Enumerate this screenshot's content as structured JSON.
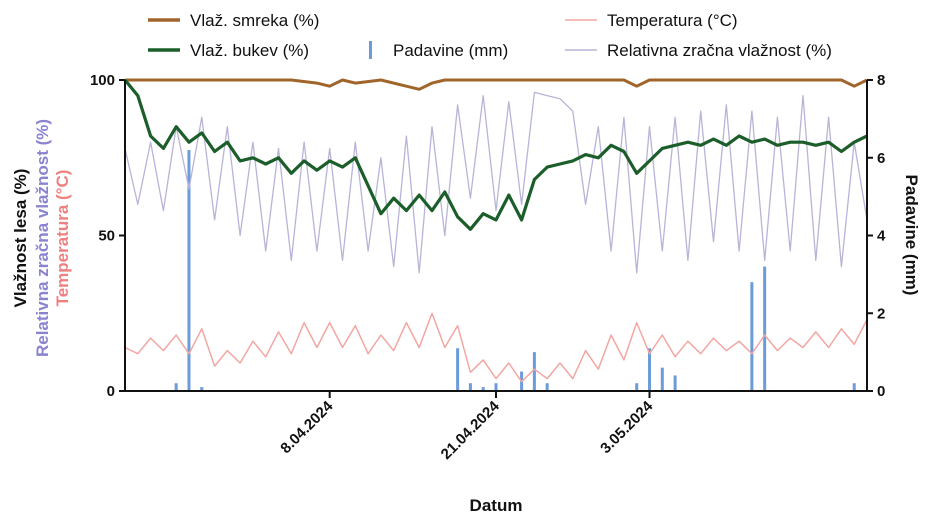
{
  "chart_data": {
    "type": "line",
    "xlabel": "Datum",
    "ylabel_left": [
      "Vlažnost lesa (%)",
      "Relativna zračna vlažnost (%)",
      "Temperatura (°C)"
    ],
    "ylabel_right": "Padavine (mm)",
    "x_range": [
      "2024-03-23",
      "2024-05-20"
    ],
    "x_ticks": [
      {
        "date": "2024-04-08",
        "label": "8.04.2024"
      },
      {
        "date": "2024-04-21",
        "label": "21.04.2024"
      },
      {
        "date": "2024-05-03",
        "label": "3.05.2024"
      }
    ],
    "y_left": {
      "min": 0,
      "max": 100,
      "ticks": [
        0,
        50,
        100
      ]
    },
    "y_right": {
      "min": 0,
      "max": 8,
      "ticks": [
        0,
        2,
        4,
        6,
        8
      ]
    },
    "colors": {
      "smreka": "#a0652b",
      "bukev": "#1b5e2a",
      "temperatura": "#f2a7a3",
      "padavine": "#6b9bd8",
      "rzv": "#b8b4d8",
      "ylabel_rzv": "#8a84d0",
      "ylabel_temp": "#f08080"
    },
    "legend": [
      {
        "key": "smreka",
        "label": "Vlaž. smreka (%)"
      },
      {
        "key": "temperatura",
        "label": "Temperatura (°C)"
      },
      {
        "key": "bukev",
        "label": "Vlaž. bukev (%)"
      },
      {
        "key": "padavine",
        "label": "Padavine (mm)"
      },
      {
        "key": "rzv",
        "label": "Relativna zračna vlažnost (%)"
      }
    ],
    "series": [
      {
        "key": "smreka",
        "name": "Vlaž. smreka (%)",
        "axis": "left",
        "points": [
          {
            "date": "2024-03-23",
            "value": 100
          },
          {
            "date": "2024-04-05",
            "value": 100
          },
          {
            "date": "2024-04-07",
            "value": 99
          },
          {
            "date": "2024-04-08",
            "value": 98
          },
          {
            "date": "2024-04-09",
            "value": 100
          },
          {
            "date": "2024-04-10",
            "value": 99
          },
          {
            "date": "2024-04-12",
            "value": 100
          },
          {
            "date": "2024-04-14",
            "value": 98
          },
          {
            "date": "2024-04-15",
            "value": 97
          },
          {
            "date": "2024-04-16",
            "value": 99
          },
          {
            "date": "2024-04-17",
            "value": 100
          },
          {
            "date": "2024-05-01",
            "value": 100
          },
          {
            "date": "2024-05-02",
            "value": 98
          },
          {
            "date": "2024-05-03",
            "value": 100
          },
          {
            "date": "2024-05-18",
            "value": 100
          },
          {
            "date": "2024-05-19",
            "value": 98
          },
          {
            "date": "2024-05-20",
            "value": 100
          }
        ]
      },
      {
        "key": "bukev",
        "name": "Vlaž. bukev (%)",
        "axis": "left",
        "points": [
          {
            "date": "2024-03-23",
            "value": 100
          },
          {
            "date": "2024-03-24",
            "value": 95
          },
          {
            "date": "2024-03-25",
            "value": 82
          },
          {
            "date": "2024-03-26",
            "value": 78
          },
          {
            "date": "2024-03-27",
            "value": 85
          },
          {
            "date": "2024-03-28",
            "value": 80
          },
          {
            "date": "2024-03-29",
            "value": 83
          },
          {
            "date": "2024-03-30",
            "value": 77
          },
          {
            "date": "2024-03-31",
            "value": 80
          },
          {
            "date": "2024-04-01",
            "value": 74
          },
          {
            "date": "2024-04-02",
            "value": 75
          },
          {
            "date": "2024-04-03",
            "value": 73
          },
          {
            "date": "2024-04-04",
            "value": 75
          },
          {
            "date": "2024-04-05",
            "value": 70
          },
          {
            "date": "2024-04-06",
            "value": 74
          },
          {
            "date": "2024-04-07",
            "value": 71
          },
          {
            "date": "2024-04-08",
            "value": 74
          },
          {
            "date": "2024-04-09",
            "value": 72
          },
          {
            "date": "2024-04-10",
            "value": 75
          },
          {
            "date": "2024-04-11",
            "value": 66
          },
          {
            "date": "2024-04-12",
            "value": 57
          },
          {
            "date": "2024-04-13",
            "value": 62
          },
          {
            "date": "2024-04-14",
            "value": 58
          },
          {
            "date": "2024-04-15",
            "value": 63
          },
          {
            "date": "2024-04-16",
            "value": 58
          },
          {
            "date": "2024-04-17",
            "value": 64
          },
          {
            "date": "2024-04-18",
            "value": 56
          },
          {
            "date": "2024-04-19",
            "value": 52
          },
          {
            "date": "2024-04-20",
            "value": 57
          },
          {
            "date": "2024-04-21",
            "value": 55
          },
          {
            "date": "2024-04-22",
            "value": 63
          },
          {
            "date": "2024-04-23",
            "value": 55
          },
          {
            "date": "2024-04-24",
            "value": 68
          },
          {
            "date": "2024-04-25",
            "value": 72
          },
          {
            "date": "2024-04-26",
            "value": 73
          },
          {
            "date": "2024-04-27",
            "value": 74
          },
          {
            "date": "2024-04-28",
            "value": 76
          },
          {
            "date": "2024-04-29",
            "value": 75
          },
          {
            "date": "2024-04-30",
            "value": 79
          },
          {
            "date": "2024-05-01",
            "value": 77
          },
          {
            "date": "2024-05-02",
            "value": 70
          },
          {
            "date": "2024-05-03",
            "value": 74
          },
          {
            "date": "2024-05-04",
            "value": 78
          },
          {
            "date": "2024-05-05",
            "value": 79
          },
          {
            "date": "2024-05-06",
            "value": 80
          },
          {
            "date": "2024-05-07",
            "value": 79
          },
          {
            "date": "2024-05-08",
            "value": 81
          },
          {
            "date": "2024-05-09",
            "value": 79
          },
          {
            "date": "2024-05-10",
            "value": 82
          },
          {
            "date": "2024-05-11",
            "value": 80
          },
          {
            "date": "2024-05-12",
            "value": 81
          },
          {
            "date": "2024-05-13",
            "value": 79
          },
          {
            "date": "2024-05-14",
            "value": 80
          },
          {
            "date": "2024-05-15",
            "value": 80
          },
          {
            "date": "2024-05-16",
            "value": 79
          },
          {
            "date": "2024-05-17",
            "value": 80
          },
          {
            "date": "2024-05-18",
            "value": 77
          },
          {
            "date": "2024-05-19",
            "value": 80
          },
          {
            "date": "2024-05-20",
            "value": 82
          }
        ]
      },
      {
        "key": "rzv",
        "name": "Relativna zračna vlažnost (%)",
        "axis": "left",
        "points": [
          {
            "date": "2024-03-23",
            "value": 78
          },
          {
            "date": "2024-03-24",
            "value": 60
          },
          {
            "date": "2024-03-25",
            "value": 80
          },
          {
            "date": "2024-03-26",
            "value": 58
          },
          {
            "date": "2024-03-27",
            "value": 85
          },
          {
            "date": "2024-03-28",
            "value": 65
          },
          {
            "date": "2024-03-29",
            "value": 88
          },
          {
            "date": "2024-03-30",
            "value": 55
          },
          {
            "date": "2024-03-31",
            "value": 85
          },
          {
            "date": "2024-04-01",
            "value": 50
          },
          {
            "date": "2024-04-02",
            "value": 80
          },
          {
            "date": "2024-04-03",
            "value": 45
          },
          {
            "date": "2024-04-04",
            "value": 78
          },
          {
            "date": "2024-04-05",
            "value": 42
          },
          {
            "date": "2024-04-06",
            "value": 80
          },
          {
            "date": "2024-04-07",
            "value": 45
          },
          {
            "date": "2024-04-08",
            "value": 78
          },
          {
            "date": "2024-04-09",
            "value": 42
          },
          {
            "date": "2024-04-10",
            "value": 80
          },
          {
            "date": "2024-04-11",
            "value": 45
          },
          {
            "date": "2024-04-12",
            "value": 75
          },
          {
            "date": "2024-04-13",
            "value": 40
          },
          {
            "date": "2024-04-14",
            "value": 82
          },
          {
            "date": "2024-04-15",
            "value": 38
          },
          {
            "date": "2024-04-16",
            "value": 85
          },
          {
            "date": "2024-04-17",
            "value": 50
          },
          {
            "date": "2024-04-18",
            "value": 92
          },
          {
            "date": "2024-04-19",
            "value": 62
          },
          {
            "date": "2024-04-20",
            "value": 95
          },
          {
            "date": "2024-04-21",
            "value": 58
          },
          {
            "date": "2024-04-22",
            "value": 93
          },
          {
            "date": "2024-04-23",
            "value": 60
          },
          {
            "date": "2024-04-24",
            "value": 96
          },
          {
            "date": "2024-04-25",
            "value": 95
          },
          {
            "date": "2024-04-26",
            "value": 94
          },
          {
            "date": "2024-04-27",
            "value": 90
          },
          {
            "date": "2024-04-28",
            "value": 60
          },
          {
            "date": "2024-04-29",
            "value": 85
          },
          {
            "date": "2024-04-30",
            "value": 45
          },
          {
            "date": "2024-05-01",
            "value": 88
          },
          {
            "date": "2024-05-02",
            "value": 38
          },
          {
            "date": "2024-05-03",
            "value": 85
          },
          {
            "date": "2024-05-04",
            "value": 45
          },
          {
            "date": "2024-05-05",
            "value": 88
          },
          {
            "date": "2024-05-06",
            "value": 42
          },
          {
            "date": "2024-05-07",
            "value": 90
          },
          {
            "date": "2024-05-08",
            "value": 48
          },
          {
            "date": "2024-05-09",
            "value": 92
          },
          {
            "date": "2024-05-10",
            "value": 45
          },
          {
            "date": "2024-05-11",
            "value": 90
          },
          {
            "date": "2024-05-12",
            "value": 42
          },
          {
            "date": "2024-05-13",
            "value": 88
          },
          {
            "date": "2024-05-14",
            "value": 45
          },
          {
            "date": "2024-05-15",
            "value": 95
          },
          {
            "date": "2024-05-16",
            "value": 42
          },
          {
            "date": "2024-05-17",
            "value": 88
          },
          {
            "date": "2024-05-18",
            "value": 40
          },
          {
            "date": "2024-05-19",
            "value": 80
          },
          {
            "date": "2024-05-20",
            "value": 55
          }
        ]
      },
      {
        "key": "temperatura",
        "name": "Temperatura (°C)",
        "axis": "left",
        "points": [
          {
            "date": "2024-03-23",
            "value": 14
          },
          {
            "date": "2024-03-24",
            "value": 12
          },
          {
            "date": "2024-03-25",
            "value": 17
          },
          {
            "date": "2024-03-26",
            "value": 13
          },
          {
            "date": "2024-03-27",
            "value": 18
          },
          {
            "date": "2024-03-28",
            "value": 12
          },
          {
            "date": "2024-03-29",
            "value": 20
          },
          {
            "date": "2024-03-30",
            "value": 8
          },
          {
            "date": "2024-03-31",
            "value": 13
          },
          {
            "date": "2024-04-01",
            "value": 9
          },
          {
            "date": "2024-04-02",
            "value": 16
          },
          {
            "date": "2024-04-03",
            "value": 11
          },
          {
            "date": "2024-04-04",
            "value": 19
          },
          {
            "date": "2024-04-05",
            "value": 12
          },
          {
            "date": "2024-04-06",
            "value": 22
          },
          {
            "date": "2024-04-07",
            "value": 14
          },
          {
            "date": "2024-04-08",
            "value": 22
          },
          {
            "date": "2024-04-09",
            "value": 14
          },
          {
            "date": "2024-04-10",
            "value": 21
          },
          {
            "date": "2024-04-11",
            "value": 12
          },
          {
            "date": "2024-04-12",
            "value": 18
          },
          {
            "date": "2024-04-13",
            "value": 13
          },
          {
            "date": "2024-04-14",
            "value": 22
          },
          {
            "date": "2024-04-15",
            "value": 14
          },
          {
            "date": "2024-04-16",
            "value": 25
          },
          {
            "date": "2024-04-17",
            "value": 14
          },
          {
            "date": "2024-04-18",
            "value": 21
          },
          {
            "date": "2024-04-19",
            "value": 6
          },
          {
            "date": "2024-04-20",
            "value": 10
          },
          {
            "date": "2024-04-21",
            "value": 4
          },
          {
            "date": "2024-04-22",
            "value": 9
          },
          {
            "date": "2024-04-23",
            "value": 3
          },
          {
            "date": "2024-04-24",
            "value": 7
          },
          {
            "date": "2024-04-25",
            "value": 4
          },
          {
            "date": "2024-04-26",
            "value": 9
          },
          {
            "date": "2024-04-27",
            "value": 4
          },
          {
            "date": "2024-04-28",
            "value": 13
          },
          {
            "date": "2024-04-29",
            "value": 7
          },
          {
            "date": "2024-04-30",
            "value": 18
          },
          {
            "date": "2024-05-01",
            "value": 10
          },
          {
            "date": "2024-05-02",
            "value": 22
          },
          {
            "date": "2024-05-03",
            "value": 12
          },
          {
            "date": "2024-05-04",
            "value": 18
          },
          {
            "date": "2024-05-05",
            "value": 11
          },
          {
            "date": "2024-05-06",
            "value": 16
          },
          {
            "date": "2024-05-07",
            "value": 12
          },
          {
            "date": "2024-05-08",
            "value": 17
          },
          {
            "date": "2024-05-09",
            "value": 13
          },
          {
            "date": "2024-05-10",
            "value": 16
          },
          {
            "date": "2024-05-11",
            "value": 12
          },
          {
            "date": "2024-05-12",
            "value": 18
          },
          {
            "date": "2024-05-13",
            "value": 13
          },
          {
            "date": "2024-05-14",
            "value": 17
          },
          {
            "date": "2024-05-15",
            "value": 14
          },
          {
            "date": "2024-05-16",
            "value": 19
          },
          {
            "date": "2024-05-17",
            "value": 14
          },
          {
            "date": "2024-05-18",
            "value": 20
          },
          {
            "date": "2024-05-19",
            "value": 15
          },
          {
            "date": "2024-05-20",
            "value": 23
          }
        ]
      }
    ],
    "precipitation": {
      "key": "padavine",
      "name": "Padavine (mm)",
      "axis": "right",
      "points": [
        {
          "date": "2024-03-27",
          "value": 0.2
        },
        {
          "date": "2024-03-28",
          "value": 6.2
        },
        {
          "date": "2024-03-29",
          "value": 0.1
        },
        {
          "date": "2024-04-18",
          "value": 1.1
        },
        {
          "date": "2024-04-19",
          "value": 0.2
        },
        {
          "date": "2024-04-20",
          "value": 0.1
        },
        {
          "date": "2024-04-21",
          "value": 0.2
        },
        {
          "date": "2024-04-23",
          "value": 0.5
        },
        {
          "date": "2024-04-24",
          "value": 1.0
        },
        {
          "date": "2024-04-25",
          "value": 0.2
        },
        {
          "date": "2024-05-02",
          "value": 0.2
        },
        {
          "date": "2024-05-03",
          "value": 1.1
        },
        {
          "date": "2024-05-04",
          "value": 0.6
        },
        {
          "date": "2024-05-05",
          "value": 0.4
        },
        {
          "date": "2024-05-11",
          "value": 2.8
        },
        {
          "date": "2024-05-12",
          "value": 3.2
        },
        {
          "date": "2024-05-19",
          "value": 0.2
        }
      ]
    }
  }
}
